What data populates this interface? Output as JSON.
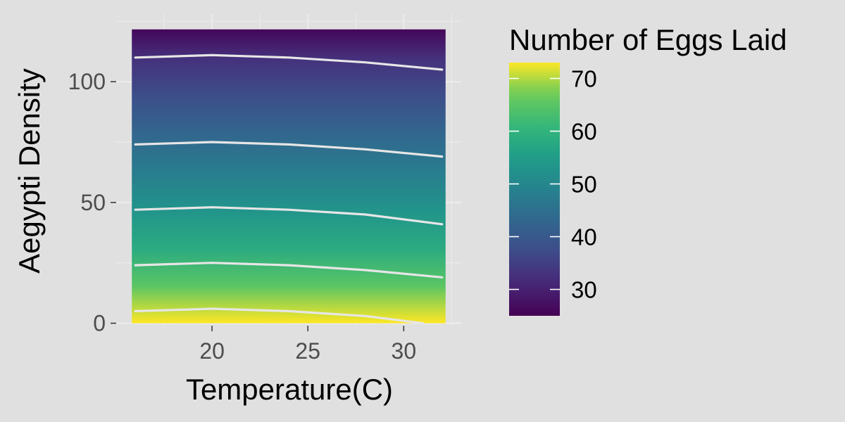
{
  "chart_data": {
    "type": "heatmap",
    "xlabel": "Temperature(C)",
    "ylabel": "Aegypti Density",
    "legend_title": "Number of Eggs Laid",
    "legend_position": "right",
    "colormap": "viridis",
    "colors": {
      "background": "#e0e0e0",
      "gridline": "#ebebeb",
      "contour": "#e6e6e6",
      "text": "#000000",
      "tick_text": "#4d4d4d"
    },
    "x_range": [
      16,
      32
    ],
    "y_range": [
      0,
      117
    ],
    "xlim": [
      15,
      33
    ],
    "ylim": [
      -1,
      128
    ],
    "x_ticks": [
      20,
      25,
      30
    ],
    "x_tick_labels": [
      "20",
      "25",
      "30"
    ],
    "y_ticks": [
      0,
      50,
      100
    ],
    "y_tick_labels": [
      "0",
      "50",
      "100"
    ],
    "color_range": [
      25,
      73
    ],
    "color_ticks": [
      30,
      40,
      50,
      60,
      70
    ],
    "color_tick_labels": [
      "30",
      "40",
      "50",
      "60",
      "70"
    ],
    "density_gradient": [
      [
        0,
        73
      ],
      [
        15,
        65
      ],
      [
        30,
        58
      ],
      [
        45,
        53
      ],
      [
        60,
        48
      ],
      [
        75,
        43
      ],
      [
        90,
        38
      ],
      [
        105,
        33
      ],
      [
        117,
        26
      ]
    ],
    "contours": [
      {
        "level": 70,
        "points": [
          [
            16,
            5
          ],
          [
            20,
            6
          ],
          [
            24,
            5
          ],
          [
            28,
            3
          ],
          [
            31,
            0
          ]
        ]
      },
      {
        "level": 60,
        "points": [
          [
            16,
            24
          ],
          [
            20,
            25
          ],
          [
            24,
            24
          ],
          [
            28,
            22
          ],
          [
            32,
            19
          ]
        ]
      },
      {
        "level": 50,
        "points": [
          [
            16,
            47
          ],
          [
            20,
            48
          ],
          [
            24,
            47
          ],
          [
            28,
            45
          ],
          [
            32,
            41
          ]
        ]
      },
      {
        "level": 40,
        "points": [
          [
            16,
            74
          ],
          [
            20,
            75
          ],
          [
            24,
            74
          ],
          [
            28,
            72
          ],
          [
            32,
            69
          ]
        ]
      },
      {
        "level": 30,
        "points": [
          [
            16,
            110
          ],
          [
            20,
            111
          ],
          [
            24,
            110
          ],
          [
            28,
            108
          ],
          [
            32,
            105
          ]
        ]
      }
    ]
  }
}
